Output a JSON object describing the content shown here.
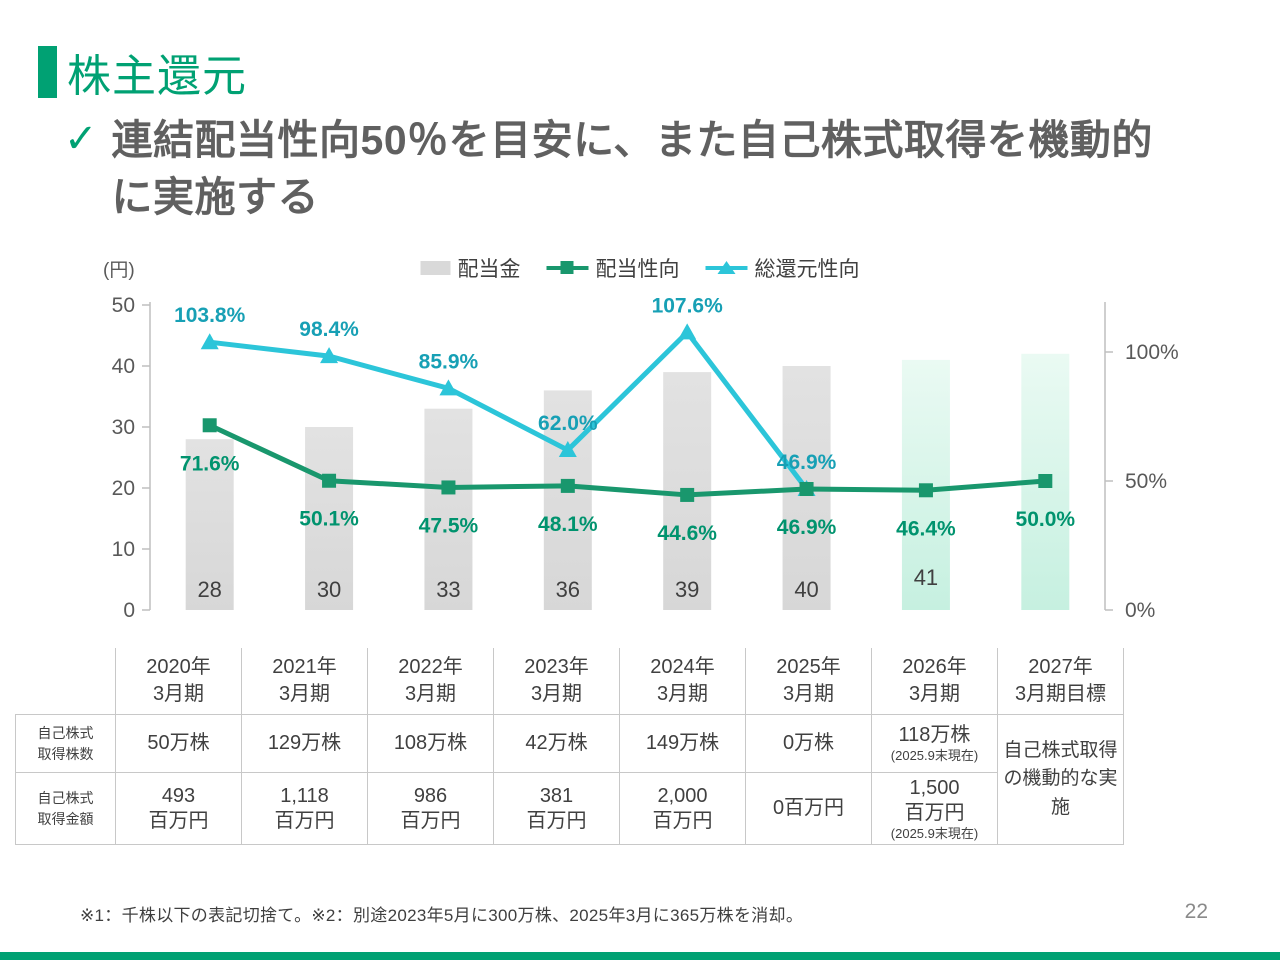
{
  "slide": {
    "title": "株主還元",
    "checkmark": "✓",
    "headline_line1": "連結配当性向50％を目安に、また自己株式取得を機動的",
    "headline_line2": "に実施する",
    "footnote": "※1：千株以下の表記切捨て。※2：別途2023年5月に300万株、2025年3月に365万株を消却。",
    "page_number": "22",
    "accent_color": "#00A173"
  },
  "chart_data": {
    "type": "bar",
    "subtype": "combo-bar-with-two-lines",
    "unit_label": "(円)",
    "categories": [
      "2020年3月期",
      "2021年3月期",
      "2022年3月期",
      "2023年3月期",
      "2024年3月期",
      "2025年3月期",
      "2026年3月期",
      "2027年3月期目標"
    ],
    "legend": [
      {
        "label": "配当金",
        "marker": "bar-swatch",
        "color": "#D9D9D9"
      },
      {
        "label": "配当性向",
        "marker": "line-square",
        "color": "#19976D"
      },
      {
        "label": "総還元性向",
        "marker": "line-triangle",
        "color": "#2CC5D9"
      }
    ],
    "legend_position": "top-center",
    "bars": {
      "name": "配当金",
      "values": [
        28,
        30,
        33,
        36,
        39,
        40,
        41,
        42
      ],
      "value_labels": [
        "28",
        "30",
        "33",
        "36",
        "39",
        "40",
        "41",
        ""
      ],
      "actual_color_top": "#E2E2E2",
      "actual_color_bottom": "#D7D7D7",
      "forecast_color_top": "#EAFAF3",
      "forecast_color_bottom": "#C6F0E0",
      "forecast_start_index": 6
    },
    "payout_ratio_line": {
      "name": "配当性向",
      "color": "#19976D",
      "label_color": "#00936E",
      "values": [
        71.6,
        50.1,
        47.5,
        48.1,
        44.6,
        46.9,
        46.4,
        50.0
      ],
      "labels": [
        "71.6%",
        "50.1%",
        "47.5%",
        "48.1%",
        "44.6%",
        "46.9%",
        "46.4%",
        "50.0%"
      ]
    },
    "total_return_line": {
      "name": "総還元性向",
      "color": "#2CC5D9",
      "label_color": "#17A0B5",
      "values": [
        103.8,
        98.4,
        85.9,
        62.0,
        107.6,
        46.9
      ],
      "labels": [
        "103.8%",
        "98.4%",
        "85.9%",
        "62.0%",
        "107.6%",
        "46.9%"
      ]
    },
    "left_axis": {
      "title": "(円)",
      "ticks": [
        0,
        10,
        20,
        30,
        40,
        50
      ],
      "min": 0,
      "max": 50
    },
    "right_axis": {
      "ticks_pct": [
        0,
        50,
        100
      ],
      "tick_labels": [
        "0%",
        "50%",
        "100%"
      ],
      "min": 0,
      "max": 100
    },
    "grid": false
  },
  "table": {
    "col_headers": [
      "2020年\n3月期",
      "2021年\n3月期",
      "2022年\n3月期",
      "2023年\n3月期",
      "2024年\n3月期",
      "2025年\n3月期",
      "2026年\n3月期",
      "2027年\n3月期目標"
    ],
    "rows": [
      {
        "label": "自己株式\n取得株数",
        "cells": [
          "50万株",
          "129万株",
          "108万株",
          "42万株",
          "149万株",
          "0万株",
          "118万株"
        ],
        "note7": "(2025.9末現在)"
      },
      {
        "label": "自己株式\n取得金額",
        "cells": [
          "493\n百万円",
          "1,118\n百万円",
          "986\n百万円",
          "381\n百万円",
          "2,000\n百万円",
          "0百万円",
          "1,500\n百万円"
        ],
        "note7": "(2025.9末現在)"
      }
    ],
    "merged_cell": "自己株式取得の機動的な実施"
  }
}
